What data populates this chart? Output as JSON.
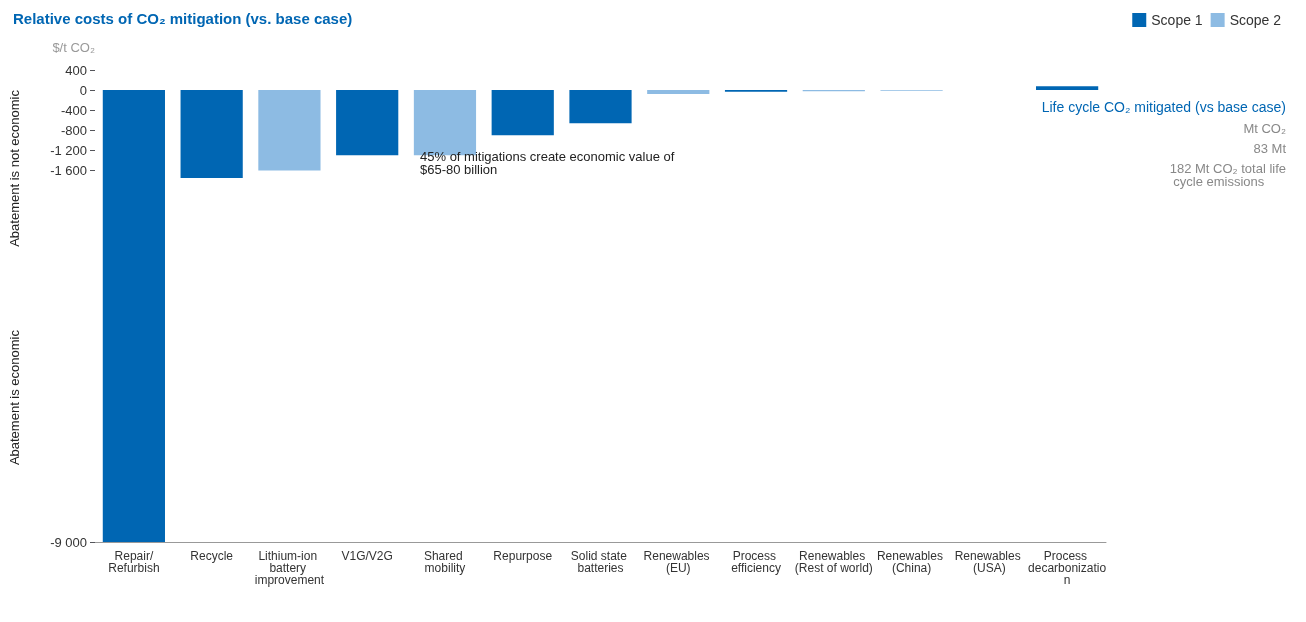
{
  "chart_data": {
    "type": "bar",
    "title": "Relative costs of CO₂ mitigation (vs. base case)",
    "ylabel": "$/t CO₂",
    "xlabel": "Life cycle CO₂ mitigated (vs base case)",
    "categories": [
      "Repair/Refurbish",
      "Recycle",
      "Lithium-ion battery improvement",
      "V1G/V2G",
      "Shared mobility",
      "Repurpose",
      "Solid state batteries",
      "Renewables (EU)",
      "Process efficiency",
      "Renewables (Rest of world)",
      "Renewables (China)",
      "Renewables (USA)",
      "Process decarbonization"
    ],
    "series": [
      {
        "name": "Scope 1",
        "color": "#0066b3",
        "values": [
          -9000,
          -1750,
          null,
          -1300,
          null,
          -900,
          -660,
          null,
          -35,
          null,
          null,
          null,
          75
        ]
      },
      {
        "name": "Scope 2",
        "color": "#8dbbe3",
        "values": [
          null,
          null,
          -1600,
          null,
          -1300,
          null,
          null,
          -80,
          null,
          -25,
          -15,
          null,
          null
        ]
      }
    ],
    "stacked": true,
    "ylim": [
      -9000,
      400
    ],
    "yticks": [
      {
        "value": -9000,
        "label": "-9 000"
      },
      {
        "value": -1600,
        "label": "-1 600"
      },
      {
        "value": -1200,
        "label": "-1 200"
      },
      -800,
      -400,
      0,
      400
    ],
    "grid": false,
    "legend": "top right",
    "annotations": [
      "Abatement is not economic",
      "Abatement is economic",
      "45% of mitigations create economic value of $65-80 billion",
      "Mt CO₂",
      "83 Mt",
      "182 Mt CO₂ total life cycle emissions"
    ]
  }
}
